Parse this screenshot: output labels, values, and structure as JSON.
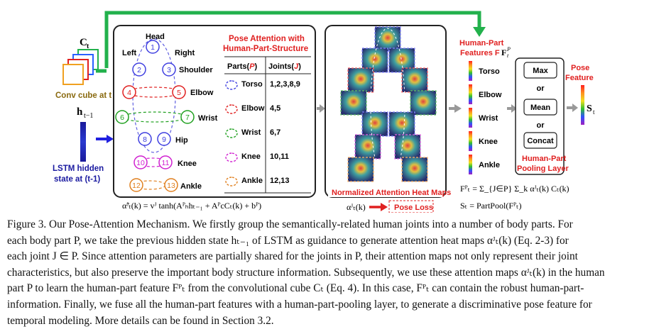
{
  "left": {
    "conv_symbol": "C",
    "conv_sub": "t",
    "conv_label": "Conv cube at t",
    "h_symbol": "h",
    "h_sub": "t−1",
    "lstm_label_1": "LSTM hidden",
    "lstm_label_2": "state at (t-1)"
  },
  "skeleton": {
    "head": "Head",
    "left": "Left",
    "right": "Right",
    "joints": [
      {
        "num": "1",
        "color": "#4040e0"
      },
      {
        "num": "2",
        "color": "#4040e0"
      },
      {
        "num": "3",
        "color": "#4040e0"
      },
      {
        "num": "4",
        "color": "#e02020"
      },
      {
        "num": "5",
        "color": "#e02020"
      },
      {
        "num": "6",
        "color": "#20a020"
      },
      {
        "num": "7",
        "color": "#20a020"
      },
      {
        "num": "8",
        "color": "#4040e0"
      },
      {
        "num": "9",
        "color": "#4040e0"
      },
      {
        "num": "10",
        "color": "#d020d0"
      },
      {
        "num": "11",
        "color": "#d020d0"
      },
      {
        "num": "12",
        "color": "#e08020"
      },
      {
        "num": "13",
        "color": "#e08020"
      }
    ],
    "labels": [
      "Shoulder",
      "Elbow",
      "Wrist",
      "Hip",
      "Knee",
      "Ankle"
    ]
  },
  "pose_table": {
    "title_1": "Pose Attention with",
    "title_2": "Human-Part-Structure",
    "col_parts": "Parts(",
    "col_parts_sym": "P",
    "col_joints": "Joints(",
    "col_joints_sym": "J",
    "rows": [
      {
        "part": "Torso",
        "joints": "1,2,3,8,9",
        "color": "#4040e0"
      },
      {
        "part": "Elbow",
        "joints": "4,5",
        "color": "#e02020"
      },
      {
        "part": "Wrist",
        "joints": "6,7",
        "color": "#20a020"
      },
      {
        "part": "Knee",
        "joints": "10,11",
        "color": "#d020d0"
      },
      {
        "part": "Ankle",
        "joints": "12,13",
        "color": "#e08020"
      }
    ]
  },
  "formula_left": "α̃ᴶₜ(k) = vᴶ tanh(Aᴾₕhₜ₋₁ + AᴾcCₜ(k) + bᴾ)",
  "heatmaps": {
    "label": "Normalized Attention Heat Maps",
    "alpha": "αᴶₜ(k)",
    "pose_loss": "Pose Loss"
  },
  "features": {
    "title_1": "Human-Part",
    "title_2": "Features F",
    "parts": [
      "Torso",
      "Elbow",
      "Wrist",
      "Knee",
      "Ankle"
    ],
    "formula_f": "Fᴾₜ = Σ_{J∈P} Σ_k αᴶₜ(k) Cₜ(k)",
    "formula_s": "Sₜ = PartPool(Fᴾₜ)"
  },
  "pooling": {
    "ops": [
      "Max",
      "Mean",
      "Concat"
    ],
    "or": "or",
    "label_1": "Human-Part",
    "label_2": "Pooling Layer"
  },
  "output": {
    "title_1": "Pose",
    "title_2": "Feature",
    "symbol": "S",
    "sub": "t"
  },
  "caption": {
    "lines": [
      "Figure 3.   Our Pose-Attention Mechanism.  We firstly group the semantically-related human joints into a number of body parts.  For",
      "each body part P, we take the previous hidden state hₜ₋₁ of LSTM as guidance to generate attention heat maps αᴶₜ(k) (Eq. 2-3) for",
      "each joint J ∈ P. Since attention parameters are partially shared for the joints in P, their attention maps not only represent their joint",
      "characteristics, but also preserve the important body structure information. Subsequently, we use these attention maps αᴶₜ(k) in the human",
      "part P to learn the human-part feature Fᴾₜ from the convolutional cube Cₜ (Eq. 4). In this case, Fᴾₜ can contain the robust human-part-",
      "information. Finally, we fuse all the human-part features with a human-part-pooling layer, to generate a discriminative pose feature for",
      "temporal modeling. More details can be found in Section 3.2."
    ]
  },
  "colors": {
    "green": "#22b14c",
    "red": "#e02020",
    "blue": "#2020e0",
    "navy": "#1a1aa0"
  }
}
